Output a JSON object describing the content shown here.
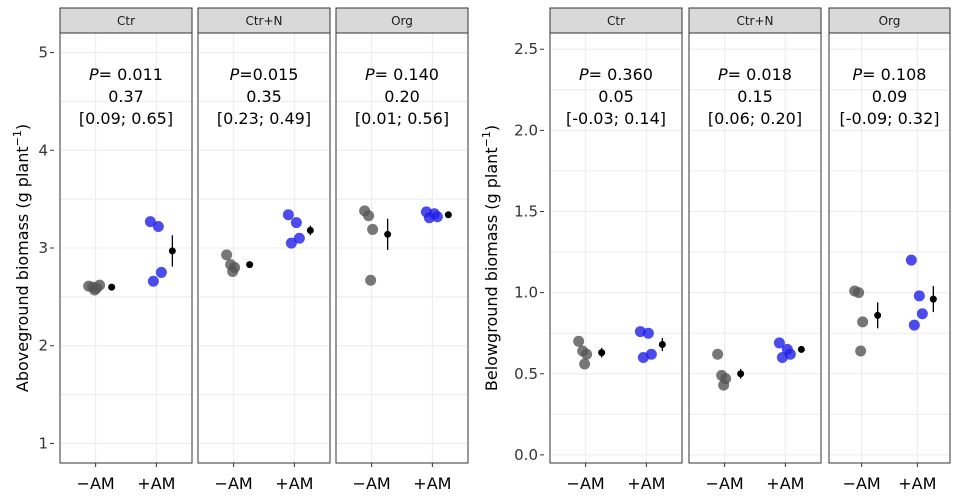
{
  "chart_data": [
    {
      "type": "scatter",
      "ylabel": "Aboveground biomass (g plant",
      "ylabel_sup": "−1",
      "ylabel_close": ")",
      "ylim": [
        0.8,
        5.2
      ],
      "yticks": [
        "1",
        "2",
        "3",
        "4",
        "5"
      ],
      "ytick_values": [
        1,
        2,
        3,
        4,
        5
      ],
      "categories": [
        "−AM",
        "+AM"
      ],
      "colors": {
        "minus_am": "#555555",
        "plus_am": "#1f1fe8",
        "mean": "#000000",
        "strip": "#d9d9d9"
      },
      "panels": [
        {
          "strip": "Ctr",
          "stats": [
            "P= 0.011",
            "0.37",
            "[0.09; 0.65]"
          ],
          "minus_am": [
            2.61,
            2.6,
            2.59,
            2.57,
            2.62
          ],
          "plus_am": [
            3.27,
            3.22,
            2.75,
            2.66
          ],
          "mean_minus": 2.6,
          "se_minus": 0.02,
          "mean_plus": 2.97,
          "se_plus": 0.16
        },
        {
          "strip": "Ctr+N",
          "stats": [
            "P=0.015",
            "0.35",
            "[0.23; 0.49]"
          ],
          "minus_am": [
            2.93,
            2.83,
            2.8,
            2.76
          ],
          "plus_am": [
            3.34,
            3.26,
            3.1,
            3.05
          ],
          "mean_minus": 2.83,
          "se_minus": 0.03,
          "mean_plus": 3.18,
          "se_plus": 0.05
        },
        {
          "strip": "Org",
          "stats": [
            "P= 0.140",
            "0.20",
            "[0.01; 0.56]"
          ],
          "minus_am": [
            3.38,
            3.33,
            3.19,
            2.67
          ],
          "plus_am": [
            3.37,
            3.35,
            3.32,
            3.31
          ],
          "mean_minus": 3.14,
          "se_minus": 0.16,
          "mean_plus": 3.34,
          "se_plus": 0.02
        }
      ]
    },
    {
      "type": "scatter",
      "ylabel": "Belowground biomass (g plant",
      "ylabel_sup": "−1",
      "ylabel_close": ")",
      "ylim": [
        -0.05,
        2.6
      ],
      "yticks": [
        "0.0",
        "0.5",
        "1.0",
        "1.5",
        "2.0",
        "2.5"
      ],
      "ytick_values": [
        0.0,
        0.5,
        1.0,
        1.5,
        2.0,
        2.5
      ],
      "categories": [
        "−AM",
        "+AM"
      ],
      "colors": {
        "minus_am": "#555555",
        "plus_am": "#1f1fe8",
        "mean": "#000000",
        "strip": "#d9d9d9"
      },
      "panels": [
        {
          "strip": "Ctr",
          "stats": [
            "P= 0.360",
            "0.05",
            "[-0.03; 0.14]"
          ],
          "minus_am": [
            0.7,
            0.64,
            0.62,
            0.56
          ],
          "plus_am": [
            0.76,
            0.75,
            0.62,
            0.6
          ],
          "mean_minus": 0.63,
          "se_minus": 0.03,
          "mean_plus": 0.68,
          "se_plus": 0.04
        },
        {
          "strip": "Ctr+N",
          "stats": [
            "P= 0.018",
            "0.15",
            "[0.06; 0.20]"
          ],
          "minus_am": [
            0.62,
            0.49,
            0.47,
            0.43
          ],
          "plus_am": [
            0.69,
            0.65,
            0.62,
            0.6
          ],
          "mean_minus": 0.5,
          "se_minus": 0.03,
          "mean_plus": 0.65,
          "se_plus": 0.02
        },
        {
          "strip": "Org",
          "stats": [
            "P= 0.108",
            "0.09",
            "[-0.09; 0.32]"
          ],
          "minus_am": [
            1.01,
            1.0,
            0.82,
            0.64
          ],
          "plus_am": [
            1.2,
            0.98,
            0.87,
            0.8
          ],
          "mean_minus": 0.86,
          "se_minus": 0.08,
          "mean_plus": 0.96,
          "se_plus": 0.08
        }
      ]
    }
  ]
}
